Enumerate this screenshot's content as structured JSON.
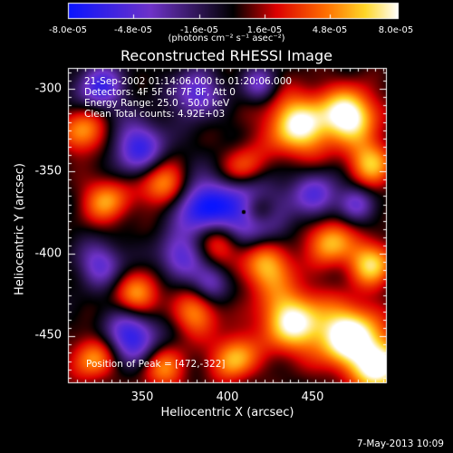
{
  "title": "Reconstructed RHESSI Image",
  "colorbar": {
    "ticks": [
      "-8.0e-05",
      "-4.8e-05",
      "-1.6e-05",
      "1.6e-05",
      "4.8e-05",
      "8.0e-05"
    ],
    "units_label": "(photons cm⁻² s⁻¹ asec⁻²)",
    "min": -8e-05,
    "max": 8e-05
  },
  "info_lines": [
    "21-Sep-2002 01:14:06.000 to 01:20:06.000",
    "Detectors: 4F 5F 6F 7F 8F, Att 0",
    "Energy Range: 25.0 - 50.0 keV",
    "Clean     Total counts: 4.92E+03"
  ],
  "peak_text": "Position of Peak = [472,-322]",
  "x_axis": {
    "label": "Heliocentric X (arcsec)",
    "ticks": [
      "350",
      "400",
      "450"
    ],
    "range": [
      303,
      492
    ]
  },
  "y_axis": {
    "label": "Heliocentric Y (arcsec)",
    "ticks": [
      "-300",
      "-350",
      "-400",
      "-450"
    ],
    "range": [
      -480,
      -289
    ]
  },
  "footer_date": "7-May-2013 10:09",
  "colors": {
    "background": "#000000",
    "text": "#ffffff"
  }
}
